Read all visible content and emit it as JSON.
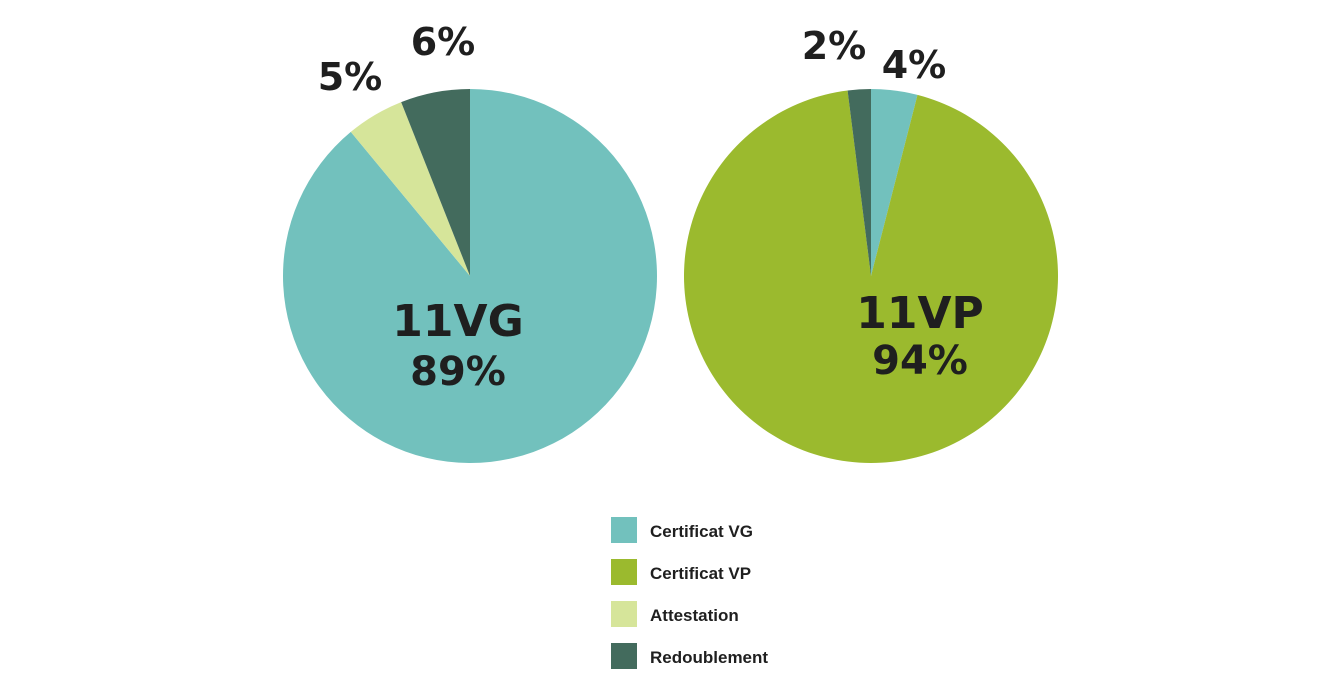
{
  "colors": {
    "certificat_vg": "#72c1bd",
    "certificat_vp": "#9bba2e",
    "attestation": "#d6e59a",
    "redoublement": "#436b5d"
  },
  "legend": [
    {
      "key": "certificat_vg",
      "label": "Certificat VG"
    },
    {
      "key": "certificat_vp",
      "label": "Certificat VP"
    },
    {
      "key": "attestation",
      "label": "Attestation"
    },
    {
      "key": "redoublement",
      "label": "Redoublement"
    }
  ],
  "chart_data": [
    {
      "type": "pie",
      "name": "11VG",
      "center_label": "11VG",
      "center_value": "89%",
      "slices": [
        {
          "key": "certificat_vg",
          "value": 89,
          "label": "89%"
        },
        {
          "key": "attestation",
          "value": 5,
          "label": "5%"
        },
        {
          "key": "redoublement",
          "value": 6,
          "label": "6%"
        }
      ]
    },
    {
      "type": "pie",
      "name": "11VP",
      "center_label": "11VP",
      "center_value": "94%",
      "slices": [
        {
          "key": "certificat_vg",
          "value": 4,
          "label": "4%"
        },
        {
          "key": "certificat_vp",
          "value": 94,
          "label": "94%"
        },
        {
          "key": "redoublement",
          "value": 2,
          "label": "2%"
        }
      ]
    }
  ]
}
